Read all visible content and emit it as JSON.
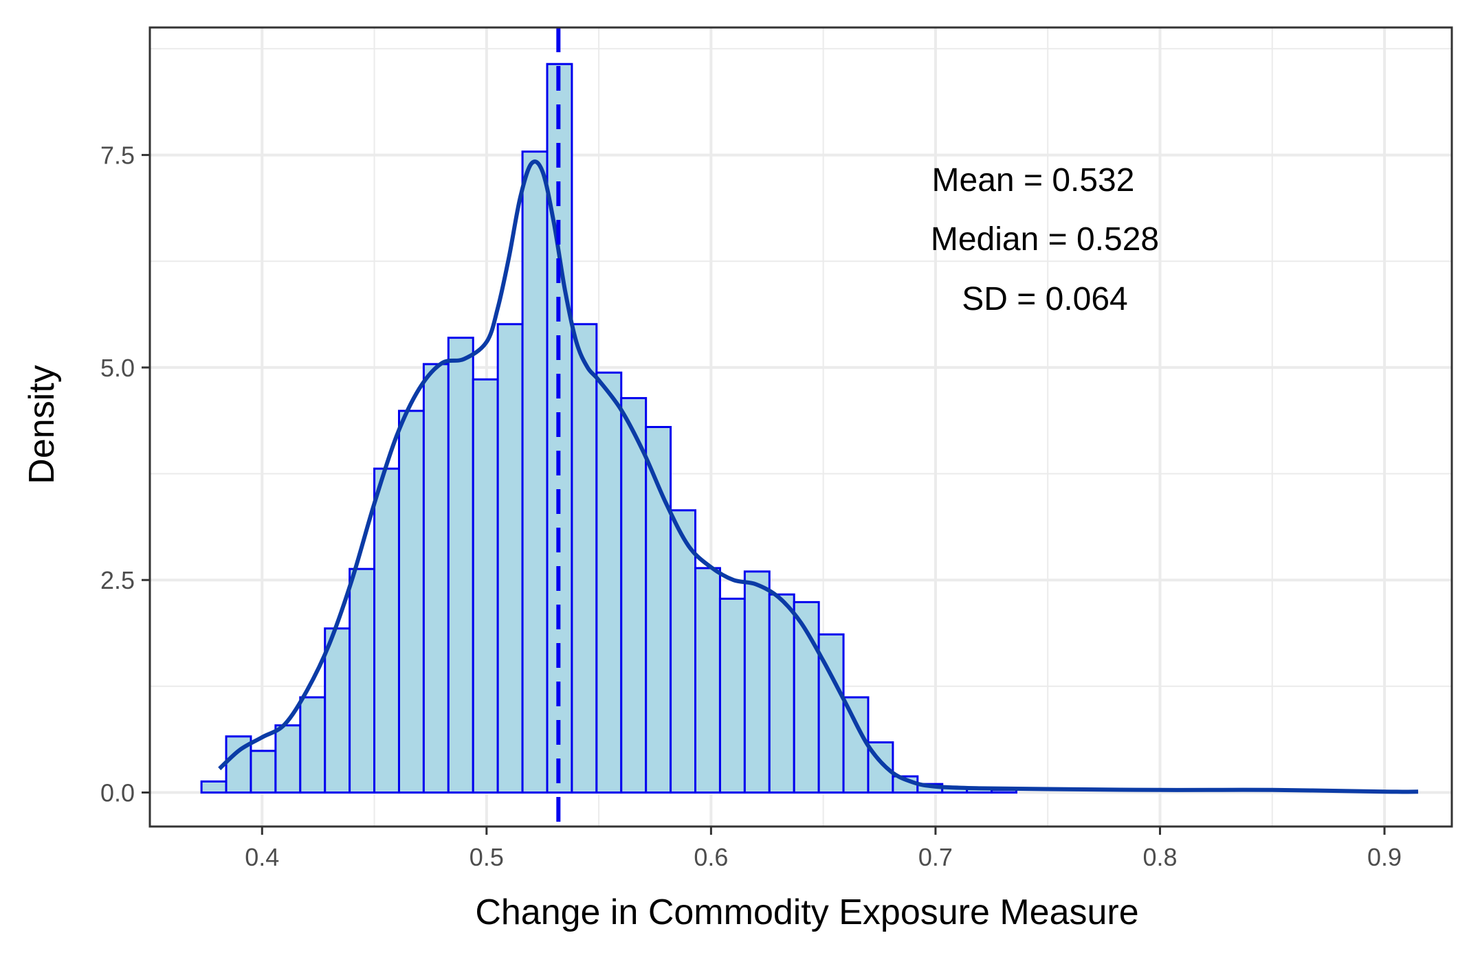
{
  "chart_data": {
    "type": "bar",
    "subtype": "histogram-with-density",
    "title": "",
    "xlabel": "Change in Commodity Exposure Measure",
    "ylabel": "Density",
    "xlim": [
      0.35,
      0.93
    ],
    "ylim": [
      -0.4,
      9.0
    ],
    "x_ticks": [
      0.4,
      0.5,
      0.6,
      0.7,
      0.8,
      0.9
    ],
    "x_tick_labels": [
      "0.4",
      "0.5",
      "0.6",
      "0.7",
      "0.8",
      "0.9"
    ],
    "y_ticks": [
      0.0,
      2.5,
      5.0,
      7.5
    ],
    "y_tick_labels": [
      "0.0",
      "2.5",
      "5.0",
      "7.5"
    ],
    "grid": true,
    "legend": "none",
    "bin_width": 0.011,
    "bins": [
      {
        "x0": 0.373,
        "density": 0.13
      },
      {
        "x0": 0.384,
        "density": 0.66
      },
      {
        "x0": 0.395,
        "density": 0.49
      },
      {
        "x0": 0.406,
        "density": 0.79
      },
      {
        "x0": 0.417,
        "density": 1.12
      },
      {
        "x0": 0.428,
        "density": 1.93
      },
      {
        "x0": 0.439,
        "density": 2.63
      },
      {
        "x0": 0.45,
        "density": 3.81
      },
      {
        "x0": 0.461,
        "density": 4.49
      },
      {
        "x0": 0.472,
        "density": 5.04
      },
      {
        "x0": 0.483,
        "density": 5.35
      },
      {
        "x0": 0.494,
        "density": 4.86
      },
      {
        "x0": 0.505,
        "density": 5.51
      },
      {
        "x0": 0.516,
        "density": 7.54
      },
      {
        "x0": 0.527,
        "density": 8.57
      },
      {
        "x0": 0.538,
        "density": 5.51
      },
      {
        "x0": 0.549,
        "density": 4.94
      },
      {
        "x0": 0.56,
        "density": 4.64
      },
      {
        "x0": 0.571,
        "density": 4.3
      },
      {
        "x0": 0.582,
        "density": 3.32
      },
      {
        "x0": 0.593,
        "density": 2.64
      },
      {
        "x0": 0.604,
        "density": 2.28
      },
      {
        "x0": 0.615,
        "density": 2.6
      },
      {
        "x0": 0.626,
        "density": 2.33
      },
      {
        "x0": 0.637,
        "density": 2.24
      },
      {
        "x0": 0.648,
        "density": 1.86
      },
      {
        "x0": 0.659,
        "density": 1.12
      },
      {
        "x0": 0.67,
        "density": 0.59
      },
      {
        "x0": 0.681,
        "density": 0.19
      },
      {
        "x0": 0.692,
        "density": 0.1
      },
      {
        "x0": 0.703,
        "density": 0.06
      },
      {
        "x0": 0.714,
        "density": 0.04
      },
      {
        "x0": 0.725,
        "density": 0.03
      }
    ],
    "density_curve": {
      "x": [
        0.381,
        0.39,
        0.4,
        0.41,
        0.42,
        0.43,
        0.44,
        0.45,
        0.46,
        0.47,
        0.48,
        0.49,
        0.5,
        0.505,
        0.51,
        0.515,
        0.52,
        0.525,
        0.53,
        0.535,
        0.54,
        0.545,
        0.55,
        0.56,
        0.57,
        0.58,
        0.59,
        0.6,
        0.61,
        0.62,
        0.63,
        0.64,
        0.65,
        0.66,
        0.67,
        0.68,
        0.69,
        0.7,
        0.72,
        0.75,
        0.8,
        0.85,
        0.9,
        0.915
      ],
      "y": [
        0.28,
        0.5,
        0.65,
        0.8,
        1.2,
        1.75,
        2.5,
        3.4,
        4.2,
        4.75,
        5.05,
        5.1,
        5.3,
        5.7,
        6.3,
        7.0,
        7.4,
        7.3,
        6.7,
        5.9,
        5.3,
        5.0,
        4.85,
        4.5,
        4.0,
        3.4,
        2.9,
        2.65,
        2.5,
        2.45,
        2.3,
        2.0,
        1.55,
        1.05,
        0.55,
        0.25,
        0.12,
        0.07,
        0.05,
        0.04,
        0.03,
        0.03,
        0.01,
        0.01
      ]
    },
    "mean_line": {
      "x": 0.532,
      "style": "dashed"
    },
    "annotation_lines": [
      "Mean = 0.532",
      "Median = 0.528",
      "SD = 0.064"
    ],
    "colors": {
      "bar_fill": "#add8e6",
      "bar_stroke": "#0000ee",
      "density_line": "#0b3ba6",
      "mean_line": "#0000ee",
      "grid": "#ebebeb",
      "panel_border": "#333333"
    }
  }
}
